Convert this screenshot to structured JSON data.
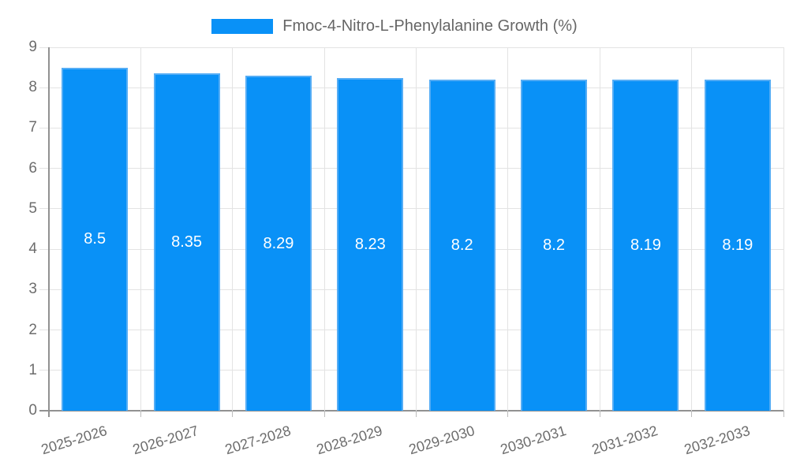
{
  "page": {
    "background": "#ffffff"
  },
  "legend": {
    "label": "Fmoc-4-Nitro-L-Phenylalanine Growth (%)",
    "swatch_color": "#0991f7"
  },
  "chart_data": {
    "type": "bar",
    "title": "Fmoc-4-Nitro-L-Phenylalanine Growth (%)",
    "categories": [
      "2025-2026",
      "2026-2027",
      "2027-2028",
      "2028-2029",
      "2029-2030",
      "2030-2031",
      "2031-2032",
      "2032-2033"
    ],
    "values": [
      8.5,
      8.35,
      8.29,
      8.23,
      8.2,
      8.2,
      8.19,
      8.19
    ],
    "xlabel": "",
    "ylabel": "",
    "ylim": [
      0,
      9
    ],
    "yticks": [
      0,
      1,
      2,
      3,
      4,
      5,
      6,
      7,
      8,
      9
    ],
    "grid": true,
    "legend_position": "top-center",
    "xtick_rotation_deg": -17,
    "colors": {
      "bar_fill": "#0991f7",
      "bar_border": "#55adf5",
      "gridline": "#e3e3e3",
      "axis_line": "#919191",
      "minor_tick": "#bdbdbd",
      "tick_label": "#6d6d6d",
      "title": "#666666",
      "value_label": "#ffffff"
    }
  }
}
